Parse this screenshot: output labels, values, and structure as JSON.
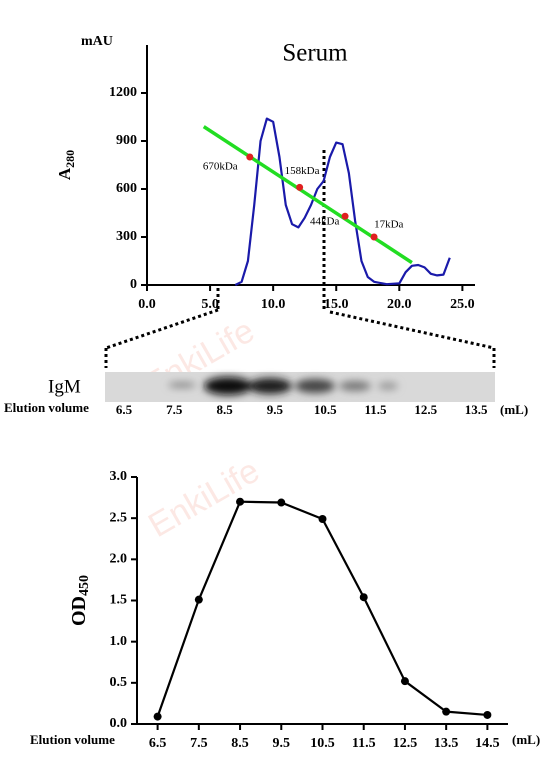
{
  "chart_data": [
    {
      "type": "line",
      "title": "Serum",
      "y_unit": "mAU",
      "ylabel": {
        "text": "A",
        "sub": "280"
      },
      "xlim": [
        0,
        26
      ],
      "xticks": [
        {
          "value": 0,
          "label": "0.0"
        },
        {
          "value": 5,
          "label": "5.0"
        },
        {
          "value": 10,
          "label": "10.0"
        },
        {
          "value": 15,
          "label": "15.0"
        },
        {
          "value": 20,
          "label": "20.0"
        },
        {
          "value": 25,
          "label": "25.0"
        }
      ],
      "ylim": [
        0,
        1500
      ],
      "yticks": [
        0,
        300,
        600,
        900,
        1200
      ],
      "series": [
        {
          "color": "#1a1aaa",
          "x": [
            7.0,
            7.5,
            8.0,
            8.5,
            9.0,
            9.5,
            10.0,
            10.5,
            11.0,
            11.5,
            12.0,
            12.5,
            13.0,
            13.5,
            14.0,
            14.5,
            15.0,
            15.5,
            16.0,
            16.5,
            17.0,
            17.5,
            18.0,
            19.0,
            20.0,
            20.5,
            21.0,
            21.5,
            22.0,
            22.5,
            23.0,
            23.5,
            24.0
          ],
          "values": [
            0,
            20,
            150,
            500,
            900,
            1040,
            1020,
            800,
            500,
            380,
            360,
            420,
            500,
            600,
            650,
            800,
            890,
            880,
            700,
            400,
            150,
            50,
            20,
            5,
            10,
            80,
            120,
            125,
            110,
            70,
            60,
            65,
            170
          ]
        }
      ],
      "standard_curve": {
        "color": "#22dd22",
        "x": [
          4.5,
          21.0
        ],
        "values": [
          990,
          140
        ]
      },
      "standards": {
        "color": "#e02020",
        "labels": [
          "670kDa",
          "158kDa",
          "44kDa",
          "17kDa"
        ],
        "x": [
          8.15,
          12.1,
          15.7,
          18.0
        ],
        "values": [
          800,
          610,
          430,
          300
        ]
      }
    },
    {
      "type": "line",
      "ylabel": {
        "text": "OD",
        "sub": "450"
      },
      "xlabel": "Elution volume",
      "x_unit": "(mL)",
      "xlim": [
        6,
        15
      ],
      "xticks": [
        6.5,
        7.5,
        8.5,
        9.5,
        10.5,
        11.5,
        12.5,
        13.5,
        14.5
      ],
      "ylim": [
        0,
        3
      ],
      "yticks": [
        {
          "value": 0,
          "label": "0.0"
        },
        {
          "value": 0.5,
          "label": "0.5"
        },
        {
          "value": 1,
          "label": "1.0"
        },
        {
          "value": 1.5,
          "label": "1.5"
        },
        {
          "value": 2,
          "label": "2.0"
        },
        {
          "value": 2.5,
          "label": "2.5"
        },
        {
          "value": 3,
          "label": "3.0"
        }
      ],
      "series": [
        {
          "color": "#000000",
          "x": [
            6.5,
            7.5,
            8.5,
            9.5,
            10.5,
            11.5,
            12.5,
            13.5,
            14.5
          ],
          "values": [
            0.09,
            1.51,
            2.7,
            2.69,
            2.49,
            1.54,
            0.52,
            0.15,
            0.11
          ]
        }
      ]
    }
  ],
  "blot": {
    "label": "IgM",
    "xlabel": "Elution volume",
    "lanes": [
      "6.5",
      "7.5",
      "8.5",
      "9.5",
      "10.5",
      "11.5",
      "12.5",
      "13.5"
    ],
    "unit": "(mL)"
  },
  "watermark": "EnkiLife"
}
